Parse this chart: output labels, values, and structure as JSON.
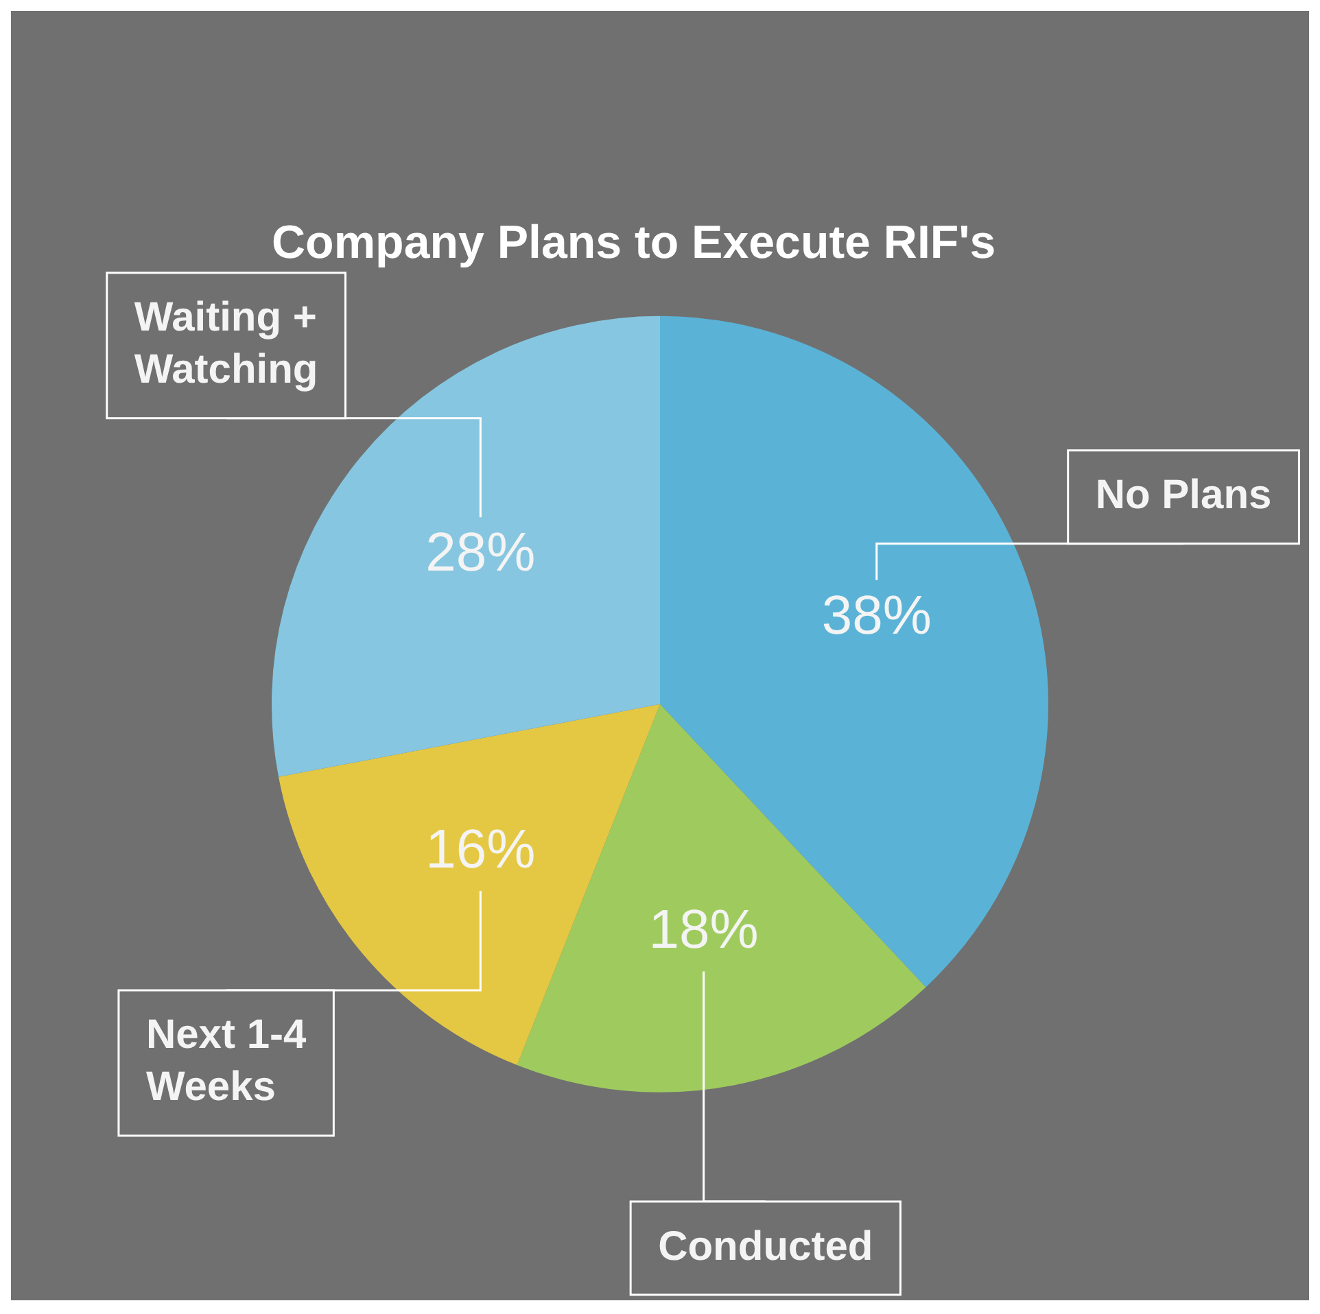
{
  "chart_data": {
    "type": "pie",
    "title": "Company Plans to Execute RIF's",
    "categories": [
      "No Plans",
      "Conducted",
      "Next 1-4 Weeks",
      "Waiting + Watching"
    ],
    "values": [
      38,
      18,
      16,
      28
    ],
    "value_labels": [
      "38%",
      "18%",
      "16%",
      "28%"
    ],
    "colors": [
      "#5ab3d6",
      "#9fcb5e",
      "#e4c844",
      "#86c6e0"
    ],
    "legend": false
  }
}
